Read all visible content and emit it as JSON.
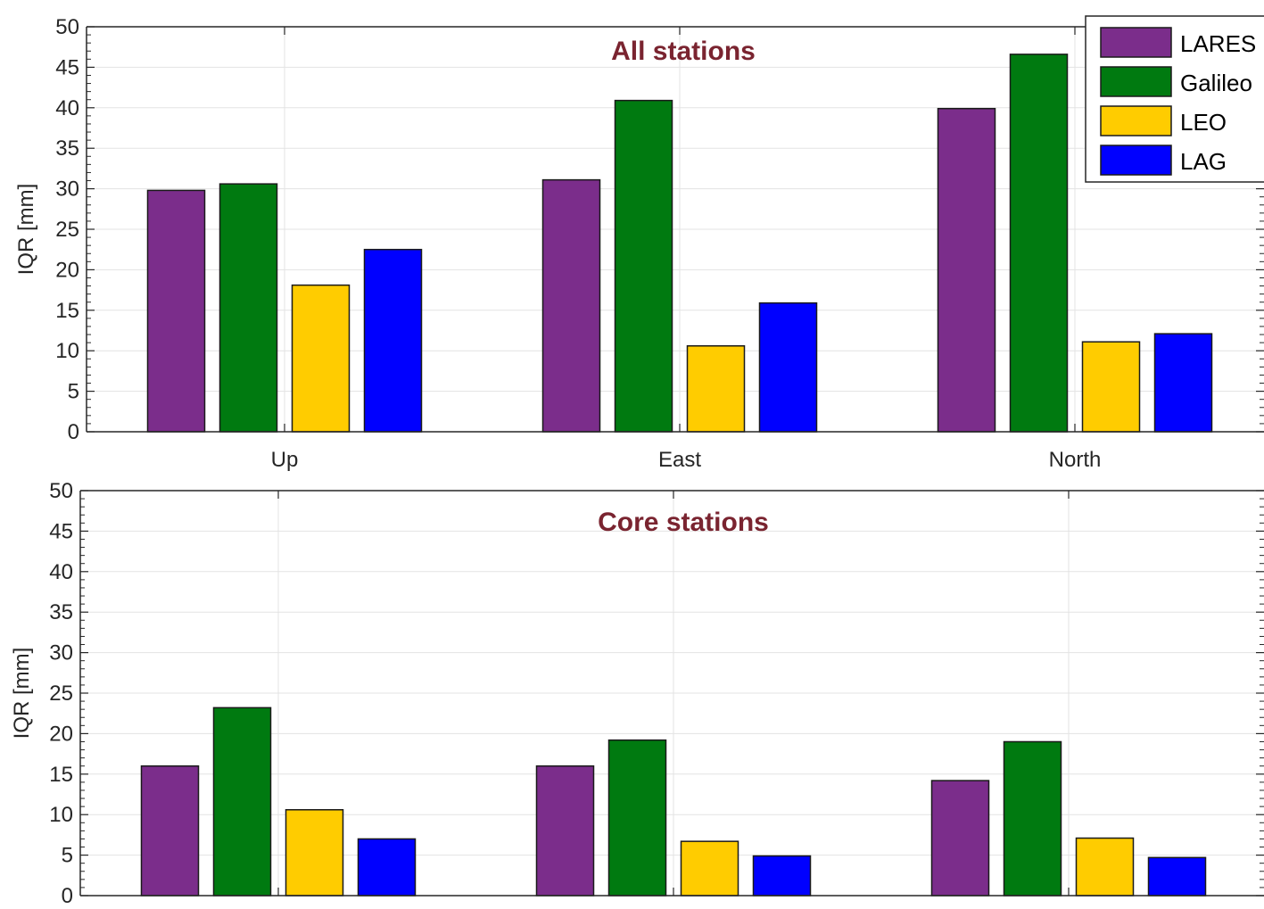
{
  "chart_data": [
    {
      "type": "bar",
      "title": "All stations",
      "ylabel": "IQR [mm]",
      "xlabel": "",
      "ylim": [
        0,
        50
      ],
      "yticks": [
        0,
        5,
        10,
        15,
        20,
        25,
        30,
        35,
        40,
        45,
        50
      ],
      "grid": true,
      "categories": [
        "Up",
        "East",
        "North"
      ],
      "show_category_labels": true,
      "legend": {
        "placement": "top-right",
        "visible": true
      },
      "series": [
        {
          "name": "LARES",
          "color": "#7b2d8b",
          "values": [
            29.8,
            31.1,
            39.9
          ]
        },
        {
          "name": "Galileo",
          "color": "#007a10",
          "values": [
            30.6,
            40.9,
            46.6
          ]
        },
        {
          "name": "LEO",
          "color": "#ffcc00",
          "values": [
            18.1,
            10.6,
            11.1
          ]
        },
        {
          "name": "LAG",
          "color": "#0000ff",
          "values": [
            22.5,
            15.9,
            12.1
          ]
        }
      ]
    },
    {
      "type": "bar",
      "title": "Core stations",
      "ylabel": "IQR [mm]",
      "xlabel": "",
      "ylim": [
        0,
        50
      ],
      "yticks": [
        0,
        5,
        10,
        15,
        20,
        25,
        30,
        35,
        40,
        45,
        50
      ],
      "grid": true,
      "categories": [
        "Up",
        "East",
        "North"
      ],
      "show_category_labels": false,
      "legend": {
        "visible": false
      },
      "series": [
        {
          "name": "LARES",
          "color": "#7b2d8b",
          "values": [
            16.0,
            16.0,
            14.2
          ]
        },
        {
          "name": "Galileo",
          "color": "#007a10",
          "values": [
            23.2,
            19.2,
            19.0
          ]
        },
        {
          "name": "LEO",
          "color": "#ffcc00",
          "values": [
            10.6,
            6.7,
            7.1
          ]
        },
        {
          "name": "LAG",
          "color": "#0000ff",
          "values": [
            7.0,
            4.9,
            4.7
          ]
        }
      ]
    }
  ]
}
